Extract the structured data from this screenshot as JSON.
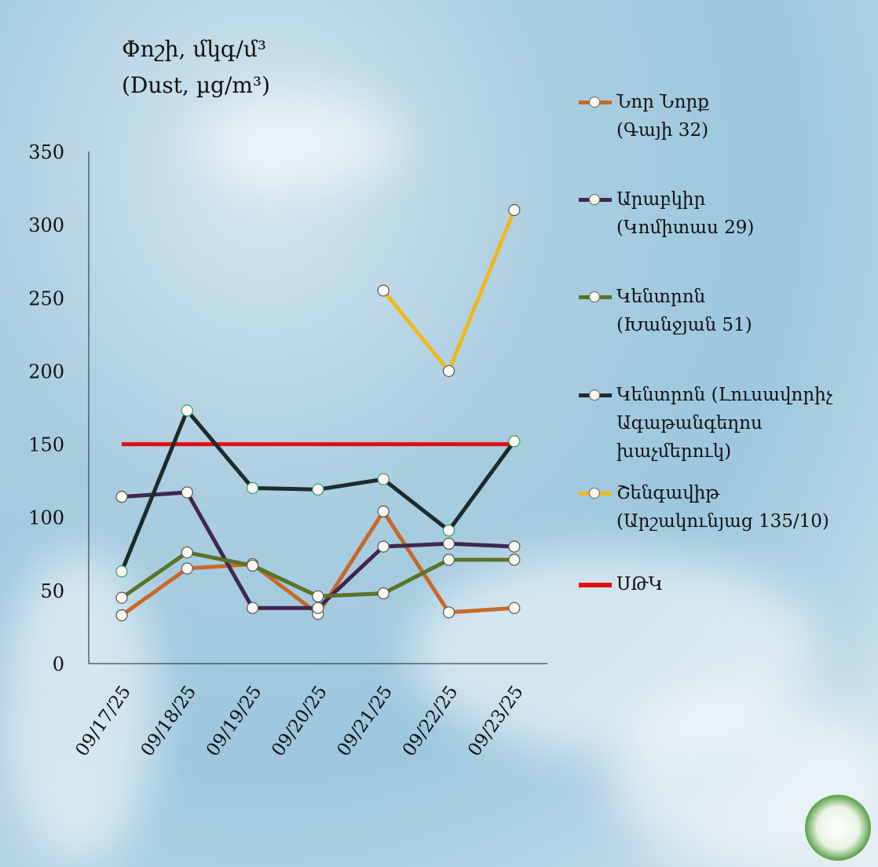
{
  "title": {
    "line1": "Փոշի, մկգ/մ³",
    "line2": "(Dust, µg/m³)"
  },
  "chart_data": {
    "type": "line",
    "title": "Փոշի, մկգ/մ³ (Dust, µg/m³)",
    "categories": [
      "09/17/25",
      "09/18/25",
      "09/19/25",
      "09/20/25",
      "09/21/25",
      "09/22/25",
      "09/23/25"
    ],
    "ylim": [
      0,
      350
    ],
    "yticks": [
      0,
      50,
      100,
      150,
      200,
      250,
      300,
      350
    ],
    "ytick_labels": [
      "0",
      "50",
      "100",
      "150",
      "200",
      "250",
      "300",
      "350"
    ],
    "grid": false,
    "legend_position": "right",
    "series": [
      {
        "name": "Նոր Նորք (Գայի 32)",
        "name_lines": [
          "Նոր Նորք",
          "(Գայի 32)"
        ],
        "color": "#c8692a",
        "markers": true,
        "values": [
          33,
          65,
          68,
          34,
          104,
          35,
          38
        ]
      },
      {
        "name": "Արաբկիր (Կոմիտաս 29)",
        "name_lines": [
          "Արաբկիր",
          "(Կոմիտաս 29)"
        ],
        "color": "#3f2750",
        "markers": true,
        "values": [
          114,
          117,
          38,
          38,
          80,
          82,
          80
        ]
      },
      {
        "name": "Կենտրոն (Խանջյան 51)",
        "name_lines": [
          "Կենտրոն",
          "(Խանջյան 51)"
        ],
        "color": "#5a7326",
        "markers": true,
        "values": [
          45,
          76,
          67,
          46,
          48,
          71,
          71
        ]
      },
      {
        "name": "Կենտրոն (Լուսավորիչ Ագաթանգեղոս խաչմերուկ)",
        "name_lines": [
          "Կենտրոն (Լուսավորիչ",
          "Ագաթանգեղոս",
          "խաչմերուկ)"
        ],
        "color": "#1d2b2b",
        "marker_edge": "#2e9e6a",
        "markers": true,
        "values": [
          63,
          173,
          120,
          119,
          126,
          91,
          152
        ]
      },
      {
        "name": "Շենգավիթ (Արշակունյաց 135/10)",
        "name_lines": [
          "Շենգավիթ",
          "(Արշակունյաց 135/10)"
        ],
        "color": "#f0b81c",
        "markers": true,
        "values": [
          null,
          null,
          null,
          null,
          255,
          200,
          310
        ]
      },
      {
        "name": "ՍԹԿ",
        "name_lines": [
          "ՍԹԿ"
        ],
        "color": "#e01010",
        "markers": false,
        "values": [
          150,
          150,
          150,
          150,
          150,
          150,
          150
        ]
      }
    ]
  }
}
